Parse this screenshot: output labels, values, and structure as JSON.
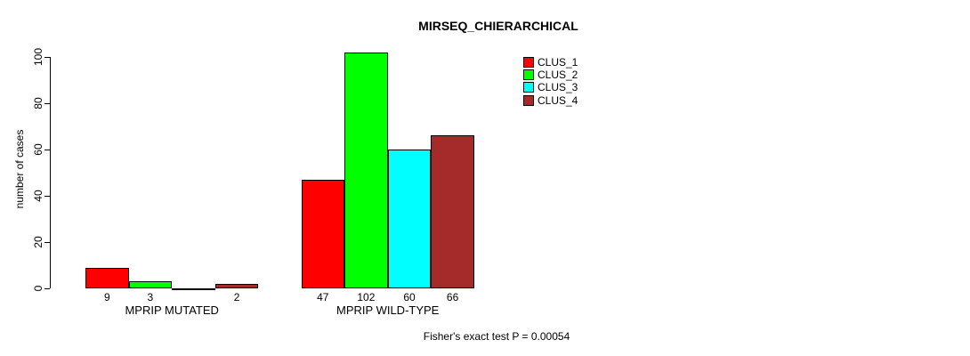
{
  "chart_data": {
    "type": "bar",
    "title": "MIRSEQ_CHIERARCHICAL",
    "xlabel": "",
    "ylabel": "number of cases",
    "ylim": [
      0,
      100
    ],
    "yticks": [
      0,
      20,
      40,
      60,
      80,
      100
    ],
    "grid": false,
    "legend_position": "top-right",
    "categories": [
      "MPRIP MUTATED",
      "MPRIP WILD-TYPE"
    ],
    "series": [
      {
        "name": "CLUS_1",
        "color": "#FF0000",
        "values": [
          9,
          47
        ]
      },
      {
        "name": "CLUS_2",
        "color": "#00FF00",
        "values": [
          3,
          102
        ]
      },
      {
        "name": "CLUS_3",
        "color": "#00FFFF",
        "values": [
          0,
          60
        ]
      },
      {
        "name": "CLUS_4",
        "color": "#A52A2A",
        "values": [
          2,
          66
        ]
      }
    ],
    "bar_value_labels": [
      [
        "9",
        "3",
        "",
        "2"
      ],
      [
        "47",
        "102",
        "60",
        "66"
      ]
    ],
    "annotation": "Fisher's exact test P = 0.00054"
  },
  "colors": {
    "background": "#FFFFFF",
    "axis": "#000000",
    "bar_border": "#000000"
  }
}
